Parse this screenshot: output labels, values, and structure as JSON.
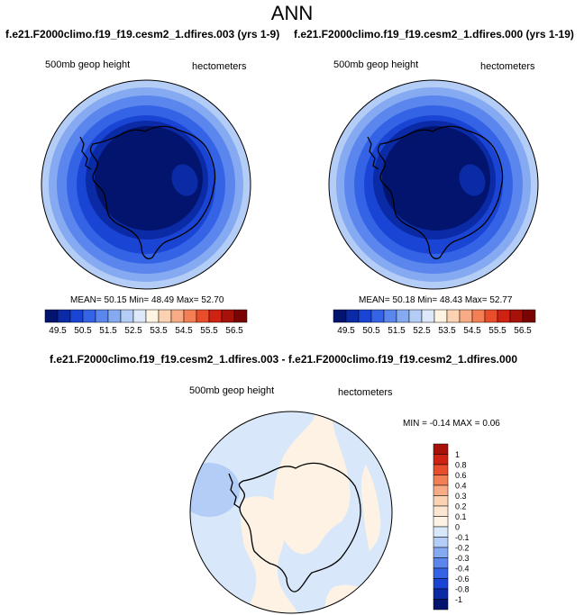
{
  "figure": {
    "title": "ANN",
    "left_panel_title": "f.e21.F2000climo.f19_f19.cesm2_1.dfires.003 (yrs 1-9)",
    "right_panel_title": "f.e21.F2000climo.f19_f19.cesm2_1.dfires.000 (yrs 1-19)",
    "diff_panel_title": "f.e21.F2000climo.f19_f19.cesm2_1.dfires.003 - f.e21.F2000climo.f19_f19.cesm2_1.dfires.000"
  },
  "maps": {
    "left": {
      "variable": "500mb geop height",
      "units": "hectometers",
      "stats": "MEAN= 50.15 Min= 48.49 Max= 52.70"
    },
    "right": {
      "variable": "500mb geop height",
      "units": "hectometers",
      "stats": "MEAN= 50.18 Min= 48.43 Max= 52.77"
    },
    "diff": {
      "variable": "500mb geop height",
      "units": "hectometers",
      "stats": "MIN = -0.14 MAX = 0.06"
    }
  },
  "colorbars": {
    "main": {
      "labels": [
        "49.5",
        "50.5",
        "51.5",
        "52.5",
        "53.5",
        "54.5",
        "55.5",
        "56.5"
      ],
      "colors": [
        "#02146e",
        "#0a2aa6",
        "#1a44d4",
        "#3563e6",
        "#5a86ee",
        "#86aaf2",
        "#b4cdf6",
        "#dde9fa",
        "#fff4e2",
        "#fbd3b3",
        "#f8ac86",
        "#f38054",
        "#e84e2c",
        "#cf2212",
        "#a8100a",
        "#7a0404"
      ]
    },
    "diff": {
      "labels": [
        "1",
        "0.8",
        "0.6",
        "0.4",
        "0.3",
        "0.2",
        "0.1",
        "0",
        "-0.1",
        "-0.2",
        "-0.3",
        "-0.4",
        "-0.6",
        "-0.8",
        "-1"
      ],
      "colors": [
        "#a8100a",
        "#cf2212",
        "#e84e2c",
        "#f38054",
        "#f8ac86",
        "#fbd3b3",
        "#fde6cf",
        "#fdf2e4",
        "#d8e8fa",
        "#b4cdf6",
        "#86aaf2",
        "#5a86ee",
        "#3563e6",
        "#1a44d4",
        "#0a2aa6",
        "#02146e"
      ]
    }
  }
}
